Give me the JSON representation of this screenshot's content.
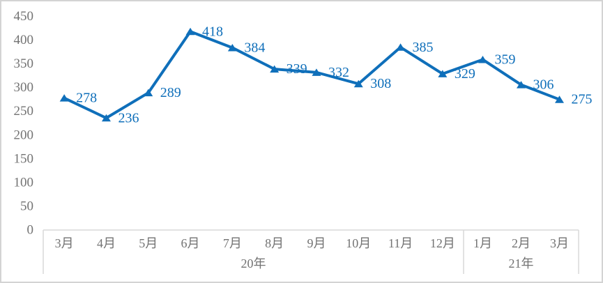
{
  "window": {
    "background": "#ffffff",
    "border_color": "#d3d3d3"
  },
  "chart_data": {
    "type": "line",
    "title": "",
    "xlabel": "",
    "ylabel": "",
    "categories": [
      "3月",
      "4月",
      "5月",
      "6月",
      "7月",
      "8月",
      "9月",
      "10月",
      "11月",
      "12月",
      "1月",
      "2月",
      "3月"
    ],
    "values": [
      278,
      236,
      289,
      418,
      384,
      339,
      332,
      308,
      385,
      329,
      359,
      306,
      275
    ],
    "category_groups": [
      {
        "label": "20年",
        "count": 10
      },
      {
        "label": "21年",
        "count": 3
      }
    ],
    "ylim": [
      0,
      450
    ],
    "ytick_step": 50,
    "yticks": [
      0,
      50,
      100,
      150,
      200,
      250,
      300,
      350,
      400,
      450
    ],
    "grid": false,
    "legend": false,
    "data_labels": true,
    "data_label_position": "right",
    "marker": "triangle-up",
    "series_color": "#0f6fba",
    "data_label_color": "#0f6fba",
    "axis_text_color": "#737373",
    "band_line_color": "#d9d9d9"
  }
}
